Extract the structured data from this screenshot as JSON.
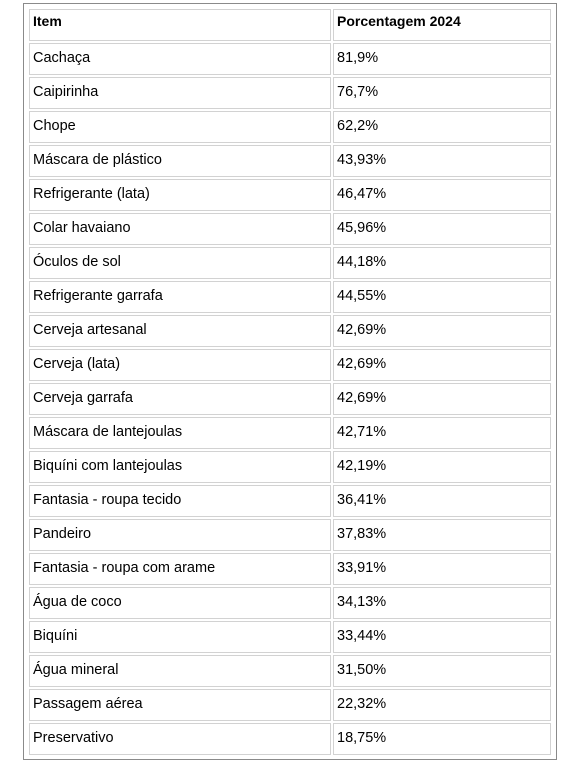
{
  "table": {
    "headers": [
      "Item",
      "Porcentagem 2024"
    ],
    "rows": [
      {
        "item": "Cachaça",
        "pct": "81,9%"
      },
      {
        "item": "Caipirinha",
        "pct": "76,7%"
      },
      {
        "item": "Chope",
        "pct": "62,2%"
      },
      {
        "item": "Máscara de plástico",
        "pct": "43,93%"
      },
      {
        "item": "Refrigerante (lata)",
        "pct": "46,47%"
      },
      {
        "item": "Colar havaiano",
        "pct": "45,96%"
      },
      {
        "item": "Óculos de sol",
        "pct": "44,18%"
      },
      {
        "item": "Refrigerante garrafa",
        "pct": "44,55%"
      },
      {
        "item": "Cerveja artesanal",
        "pct": "42,69%"
      },
      {
        "item": "Cerveja (lata)",
        "pct": "42,69%"
      },
      {
        "item": "Cerveja garrafa",
        "pct": "42,69%"
      },
      {
        "item": "Máscara de lantejoulas",
        "pct": "42,71%"
      },
      {
        "item": "Biquíni com lantejoulas",
        "pct": "42,19%"
      },
      {
        "item": "Fantasia - roupa tecido",
        "pct": "36,41%"
      },
      {
        "item": "Pandeiro",
        "pct": "37,83%"
      },
      {
        "item": "Fantasia - roupa com arame",
        "pct": "33,91%"
      },
      {
        "item": "Água de coco",
        "pct": "34,13%"
      },
      {
        "item": "Biquíni",
        "pct": "33,44%"
      },
      {
        "item": "Água mineral",
        "pct": "31,50%"
      },
      {
        "item": "Passagem aérea",
        "pct": "22,32%"
      },
      {
        "item": "Preservativo",
        "pct": "18,75%"
      }
    ]
  }
}
